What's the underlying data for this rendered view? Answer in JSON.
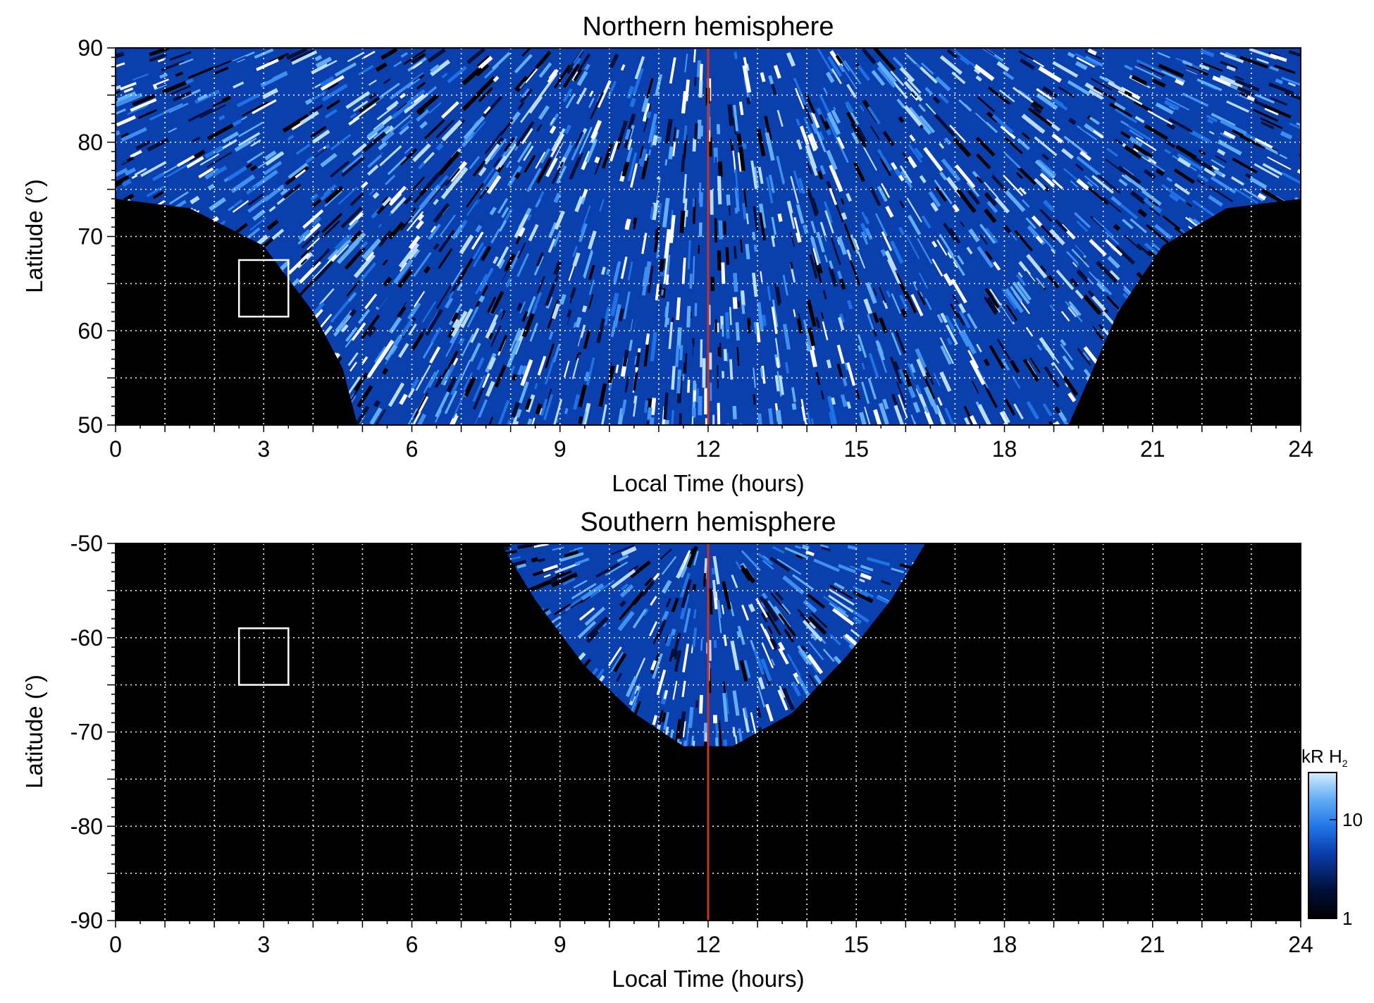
{
  "chart_data": [
    {
      "type": "heatmap",
      "title": "Northern hemisphere",
      "xlabel": "Local Time (hours)",
      "ylabel": "Latitude (°)",
      "xlim": [
        0,
        24
      ],
      "ylim": [
        50,
        90
      ],
      "xticks": [
        0,
        3,
        6,
        9,
        12,
        15,
        18,
        21,
        24
      ],
      "yticks": [
        50,
        60,
        70,
        80,
        90
      ],
      "grid": true,
      "grid_x_step_hours": 1,
      "grid_y_step_deg": 5,
      "reference_line": {
        "x": 12,
        "color": "#c8321e"
      },
      "box": {
        "x_range": [
          2.5,
          3.5
        ],
        "y_range": [
          61.5,
          67.5
        ],
        "color": "#ffffff"
      },
      "coverage": {
        "description_values": "observed region spans 0-24 h poleward of ~74°, reaching 50° latitude between ~4.5 h and ~19.5 h LT",
        "dayside_edge_lt": [
          [
            0,
            74
          ],
          [
            1.5,
            73
          ],
          [
            3,
            69
          ],
          [
            4,
            62
          ],
          [
            4.6,
            56
          ],
          [
            4.9,
            50
          ],
          [
            19.3,
            50
          ],
          [
            19.8,
            56
          ],
          [
            20.3,
            62
          ],
          [
            21.2,
            69
          ],
          [
            22.5,
            73
          ],
          [
            24,
            74
          ]
        ]
      }
    },
    {
      "type": "heatmap",
      "title": "Southern hemisphere",
      "xlabel": "Local Time (hours)",
      "ylabel": "Latitude (°)",
      "xlim": [
        0,
        24
      ],
      "ylim": [
        -90,
        -50
      ],
      "xticks": [
        0,
        3,
        6,
        9,
        12,
        15,
        18,
        21,
        24
      ],
      "yticks": [
        -50,
        -60,
        -70,
        -80,
        -90
      ],
      "grid": true,
      "grid_x_step_hours": 1,
      "grid_y_step_deg": 5,
      "reference_line": {
        "x": 12,
        "color": "#c8321e"
      },
      "box": {
        "x_range": [
          2.5,
          3.5
        ],
        "y_range": [
          -65,
          -59
        ],
        "color": "#ffffff"
      },
      "coverage": {
        "dayside_edge_lt": [
          [
            7.8,
            -50
          ],
          [
            8.5,
            -56
          ],
          [
            9.5,
            -63
          ],
          [
            10.5,
            -68
          ],
          [
            11.5,
            -71.5
          ],
          [
            12.5,
            -71.5
          ],
          [
            13.7,
            -68
          ],
          [
            14.8,
            -62
          ],
          [
            15.7,
            -56
          ],
          [
            16.4,
            -50
          ]
        ]
      }
    }
  ],
  "colorbar": {
    "label_main": "kR H",
    "label_sub": "2",
    "scale": "log",
    "range": [
      1,
      30
    ],
    "ticks": [
      1,
      10
    ],
    "colors": [
      "#000000",
      "#00103a",
      "#0a3fae",
      "#1f72e6",
      "#62aef5",
      "#d6ecff"
    ]
  }
}
